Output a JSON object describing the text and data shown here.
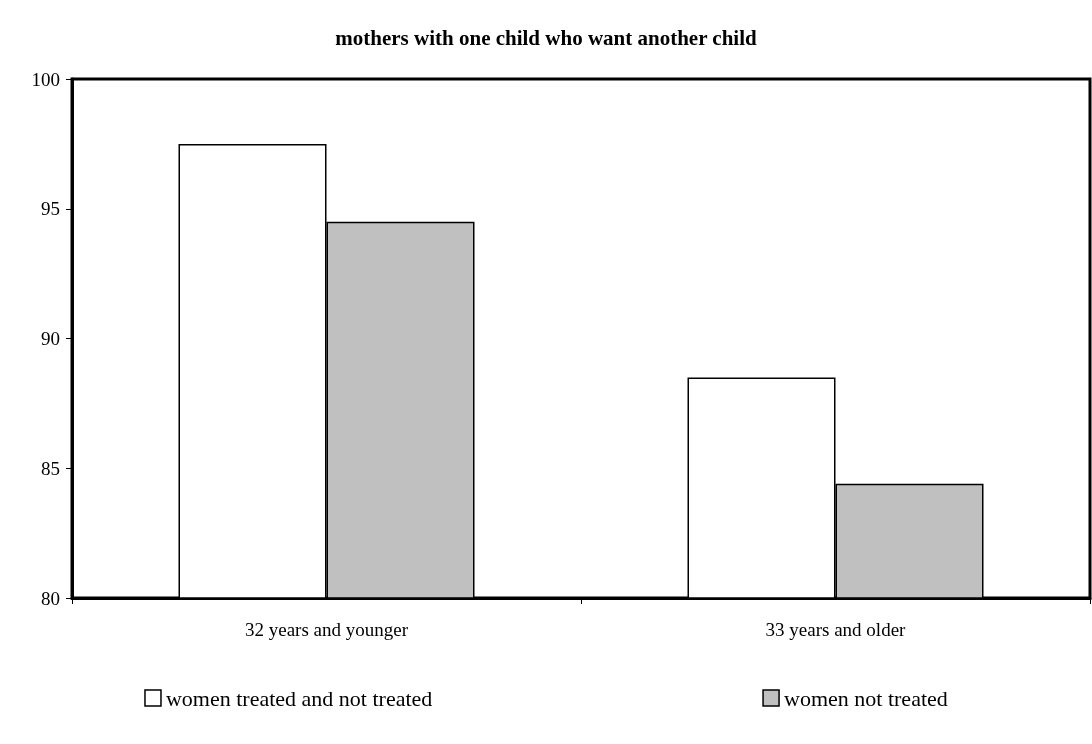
{
  "chart_data": {
    "type": "bar",
    "title": "mothers with one child who want another child",
    "categories": [
      "32 years and younger",
      "33 years and older"
    ],
    "series": [
      {
        "name": "women treated and not treated",
        "color": "#ffffff",
        "values": [
          97.5,
          88.5
        ]
      },
      {
        "name": "women not treated",
        "color": "#c0c0c0",
        "values": [
          94.5,
          84.4
        ]
      }
    ],
    "ylim": [
      80,
      100
    ],
    "yticks": [
      80,
      85,
      90,
      95,
      100
    ],
    "grid": false,
    "legend": "bottom"
  }
}
